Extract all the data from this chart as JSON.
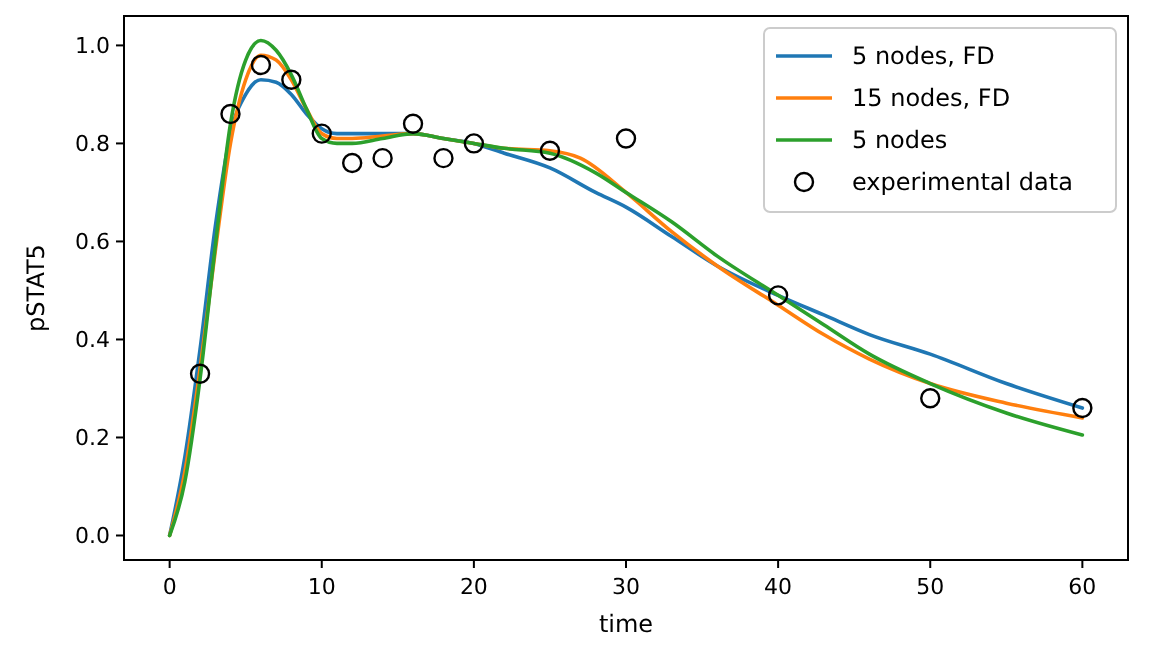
{
  "chart_data": {
    "type": "line",
    "xlabel": "time",
    "ylabel": "pSTAT5",
    "xlim": [
      -3,
      63
    ],
    "ylim": [
      -0.05,
      1.06
    ],
    "xticks": [
      0,
      10,
      20,
      30,
      40,
      50,
      60
    ],
    "yticks": [
      {
        "value": 0,
        "label": "0.0"
      },
      {
        "value": 0.2,
        "label": "0.2"
      },
      {
        "value": 0.4,
        "label": "0.4"
      },
      {
        "value": 0.6,
        "label": "0.6"
      },
      {
        "value": 0.8,
        "label": "0.8"
      },
      {
        "value": 1,
        "label": "1.0"
      }
    ],
    "grid": false,
    "legend": "top right",
    "series": [
      {
        "name": "5 nodes, FD",
        "color": "#1f77b4",
        "marker": "none",
        "x": [
          0,
          1,
          2,
          3,
          4,
          5,
          6,
          7,
          8,
          9,
          10,
          11,
          12,
          14,
          16,
          18,
          20,
          22,
          25,
          28,
          30,
          33,
          36,
          40,
          43,
          46,
          50,
          55,
          60
        ],
        "values": [
          0,
          0.16,
          0.38,
          0.63,
          0.82,
          0.9,
          0.93,
          0.925,
          0.9,
          0.86,
          0.83,
          0.82,
          0.82,
          0.82,
          0.82,
          0.81,
          0.8,
          0.78,
          0.75,
          0.7,
          0.67,
          0.61,
          0.55,
          0.49,
          0.45,
          0.41,
          0.37,
          0.31,
          0.26
        ]
      },
      {
        "name": "15 nodes, FD",
        "color": "#ff7f0e",
        "marker": "none",
        "x": [
          0,
          1,
          2,
          3,
          4,
          5,
          6,
          7,
          8,
          9,
          10,
          11,
          12,
          14,
          16,
          18,
          20,
          22,
          25,
          27,
          30,
          33,
          36,
          40,
          43,
          46,
          50,
          55,
          60
        ],
        "values": [
          0,
          0.13,
          0.34,
          0.58,
          0.8,
          0.93,
          0.98,
          0.97,
          0.93,
          0.87,
          0.82,
          0.81,
          0.81,
          0.815,
          0.82,
          0.81,
          0.8,
          0.79,
          0.785,
          0.77,
          0.7,
          0.62,
          0.55,
          0.47,
          0.41,
          0.36,
          0.31,
          0.27,
          0.24
        ]
      },
      {
        "name": "5 nodes",
        "color": "#2ca02c",
        "marker": "none",
        "x": [
          0,
          1,
          2,
          3,
          4,
          5,
          6,
          7,
          8,
          9,
          10,
          11,
          12,
          14,
          16,
          18,
          20,
          22,
          25,
          28,
          30,
          33,
          36,
          40,
          43,
          46,
          50,
          55,
          60
        ],
        "values": [
          0,
          0.11,
          0.32,
          0.59,
          0.84,
          0.97,
          1.01,
          0.99,
          0.94,
          0.87,
          0.81,
          0.8,
          0.8,
          0.81,
          0.82,
          0.81,
          0.8,
          0.79,
          0.78,
          0.74,
          0.7,
          0.64,
          0.57,
          0.49,
          0.43,
          0.37,
          0.31,
          0.25,
          0.205
        ]
      },
      {
        "name": "experimental data",
        "type": "scatter",
        "color": "#000000",
        "marker": "circle",
        "x": [
          2,
          4,
          6,
          8,
          10,
          12,
          14,
          16,
          18,
          20,
          25,
          30,
          40,
          50,
          60
        ],
        "values": [
          0.33,
          0.86,
          0.96,
          0.93,
          0.82,
          0.76,
          0.77,
          0.84,
          0.77,
          0.8,
          0.785,
          0.81,
          0.49,
          0.28,
          0.26
        ]
      }
    ]
  }
}
